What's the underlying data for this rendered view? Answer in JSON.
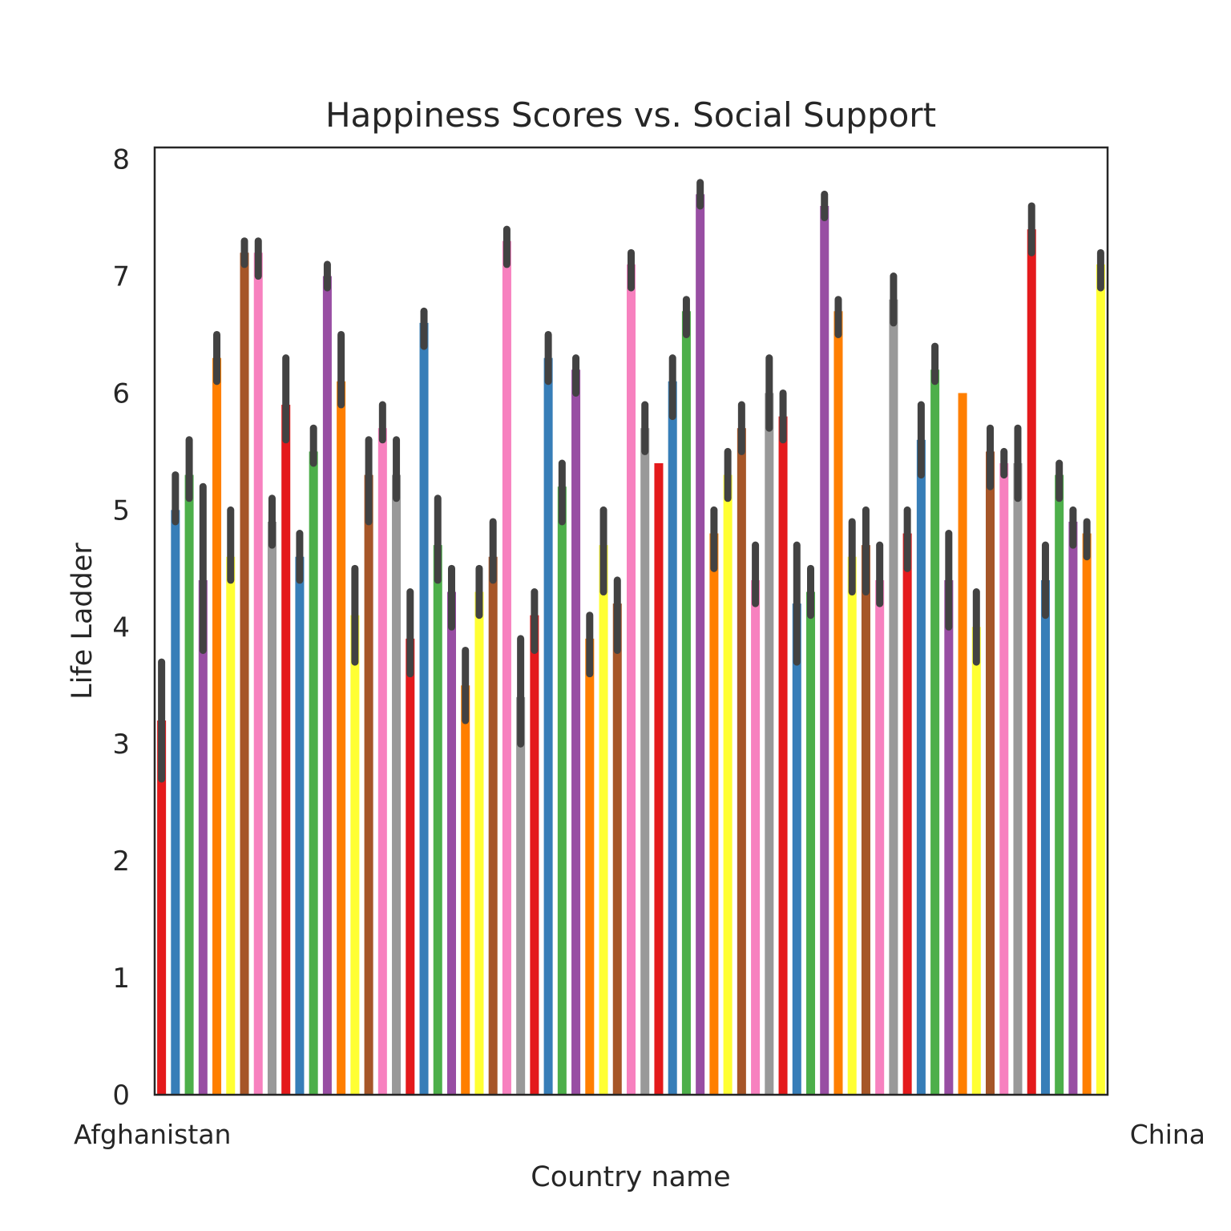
{
  "chart_data": {
    "type": "bar",
    "title": "Happiness Scores vs. Social Support",
    "xlabel": "Country name",
    "ylabel": "Life Ladder",
    "ylim": [
      0,
      8.1
    ],
    "yticks": [
      0,
      1,
      2,
      3,
      4,
      5,
      6,
      7,
      8
    ],
    "grid": false,
    "palette": [
      "#e41a1c",
      "#377eb8",
      "#4daf4a",
      "#984ea3",
      "#ff7f00",
      "#ffff33",
      "#a65628",
      "#f781bf",
      "#999999"
    ],
    "errorbar_color": "#424242",
    "category_labels_shown": [
      "Afghanistan",
      "China"
    ],
    "values": [
      3.2,
      5.0,
      5.3,
      4.4,
      6.3,
      4.6,
      7.2,
      7.2,
      4.9,
      5.9,
      4.6,
      5.5,
      7.0,
      6.1,
      4.1,
      5.3,
      5.7,
      5.3,
      3.9,
      6.6,
      4.7,
      4.3,
      3.5,
      4.3,
      4.6,
      7.3,
      3.4,
      4.1,
      6.3,
      5.2,
      6.2,
      3.9,
      4.7,
      4.2,
      7.1,
      5.7,
      5.4,
      6.1,
      6.7,
      7.7,
      4.8,
      5.3,
      5.7,
      4.4,
      6.0,
      5.8,
      4.2,
      4.3,
      7.6,
      6.7,
      4.6,
      4.7,
      4.4,
      6.8,
      4.8,
      5.6,
      6.2,
      4.4,
      6.0,
      4.0,
      5.5,
      5.4,
      5.4,
      7.4,
      4.4,
      5.3,
      4.9,
      4.8,
      7.1
    ],
    "ci_lower": [
      2.7,
      4.9,
      5.1,
      3.8,
      6.1,
      4.4,
      7.1,
      7.0,
      4.7,
      5.6,
      4.4,
      5.4,
      6.9,
      5.9,
      3.7,
      4.9,
      5.6,
      5.1,
      3.6,
      6.4,
      4.4,
      4.0,
      3.2,
      4.1,
      4.4,
      7.1,
      3.0,
      3.8,
      6.1,
      4.9,
      6.0,
      3.6,
      4.3,
      3.8,
      6.9,
      5.5,
      5.4,
      5.8,
      6.5,
      7.6,
      4.5,
      5.1,
      5.5,
      4.2,
      5.7,
      5.6,
      3.7,
      4.1,
      7.5,
      6.5,
      4.3,
      4.3,
      4.2,
      6.6,
      4.5,
      5.3,
      6.1,
      4.0,
      6.0,
      3.7,
      5.2,
      5.3,
      5.1,
      7.2,
      4.1,
      5.1,
      4.7,
      4.6,
      6.9
    ],
    "ci_upper": [
      3.7,
      5.3,
      5.6,
      5.2,
      6.5,
      5.0,
      7.3,
      7.3,
      5.1,
      6.3,
      4.8,
      5.7,
      7.1,
      6.5,
      4.5,
      5.6,
      5.9,
      5.6,
      4.3,
      6.7,
      5.1,
      4.5,
      3.8,
      4.5,
      4.9,
      7.4,
      3.9,
      4.3,
      6.5,
      5.4,
      6.3,
      4.1,
      5.0,
      4.4,
      7.2,
      5.9,
      5.4,
      6.3,
      6.8,
      7.8,
      5.0,
      5.5,
      5.9,
      4.7,
      6.3,
      6.0,
      4.7,
      4.5,
      7.7,
      6.8,
      4.9,
      5.0,
      4.7,
      7.0,
      5.0,
      5.9,
      6.4,
      4.8,
      6.0,
      4.3,
      5.7,
      5.5,
      5.7,
      7.6,
      4.7,
      5.4,
      5.0,
      4.9,
      7.2
    ]
  }
}
